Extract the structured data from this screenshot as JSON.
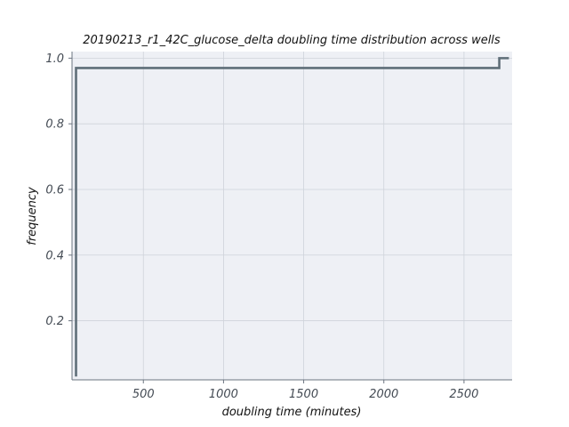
{
  "chart_data": {
    "type": "line",
    "subtype": "ecdf-step",
    "title": "20190213_r1_42C_glucose_delta doubling time distribution across wells",
    "xlabel": "doubling time (minutes)",
    "ylabel": "frequency",
    "xlim": [
      55,
      2800
    ],
    "ylim": [
      0.02,
      1.02
    ],
    "xticks": [
      500,
      1000,
      1500,
      2000,
      2500
    ],
    "yticks": [
      0.2,
      0.4,
      0.6,
      0.8,
      1.0
    ],
    "xtick_labels": [
      "500",
      "1000",
      "1500",
      "2000",
      "2500"
    ],
    "ytick_labels": [
      "0.2",
      "0.4",
      "0.6",
      "0.8",
      "1.0"
    ],
    "grid": true,
    "series": [
      {
        "x": [
          80,
          80,
          80,
          2720,
          2720,
          2780
        ],
        "y": [
          0.03,
          0.03,
          0.97,
          0.97,
          1.0,
          1.0
        ]
      }
    ],
    "colors": {
      "line": "#5f6e78",
      "plot_background": "#eef0f5",
      "grid": "#cfd3da",
      "axis": "#6b7480"
    }
  }
}
